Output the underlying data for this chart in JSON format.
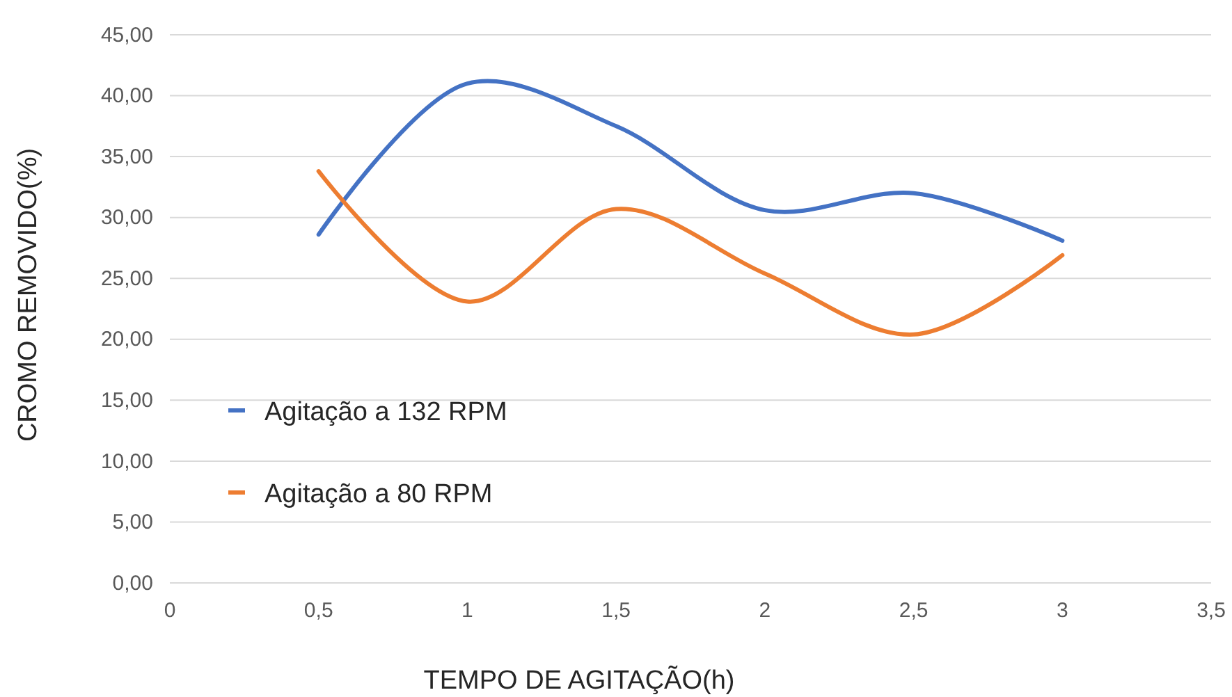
{
  "chart_data": {
    "type": "line",
    "xlabel": "TEMPO DE AGITAÇÃO(h)",
    "ylabel": "CROMO REMOVIDO(%)",
    "xlim": [
      0,
      3.5
    ],
    "xticks": [
      0,
      {
        "value": 0.5,
        "label": "0,5"
      },
      1,
      {
        "value": 1.5,
        "label": "1,5"
      },
      2,
      {
        "value": 2.5,
        "label": "2,5"
      },
      3,
      {
        "value": 3.5,
        "label": "3,5"
      }
    ],
    "ylim": [
      0,
      45
    ],
    "yticks": [
      {
        "value": 0,
        "label": "0,00"
      },
      {
        "value": 5,
        "label": "5,00"
      },
      {
        "value": 10,
        "label": "10,00"
      },
      {
        "value": 15,
        "label": "15,00"
      },
      {
        "value": 20,
        "label": "20,00"
      },
      {
        "value": 25,
        "label": "25,00"
      },
      {
        "value": 30,
        "label": "30,00"
      },
      {
        "value": 35,
        "label": "35,00"
      },
      {
        "value": 40,
        "label": "40,00"
      },
      {
        "value": 45,
        "label": "45,00"
      }
    ],
    "grid": "y",
    "legend": "left",
    "marker": "none",
    "line_style": "solid",
    "x": [
      0.5,
      1,
      1.5,
      2,
      2.5,
      3
    ],
    "series": [
      {
        "name": "Agitação a 132 RPM",
        "color": "#4472c4",
        "values": [
          28.6,
          41.0,
          37.5,
          30.6,
          32.0,
          28.1
        ]
      },
      {
        "name": "Agitação a 80 RPM",
        "color": "#ed7d31",
        "values": [
          33.8,
          23.1,
          30.7,
          25.4,
          20.4,
          26.9
        ]
      }
    ]
  }
}
